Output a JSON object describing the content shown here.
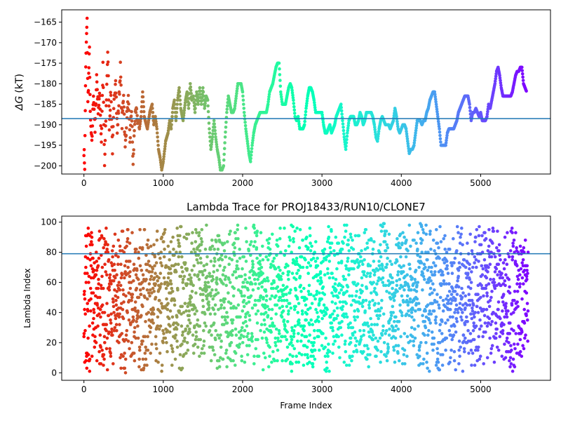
{
  "chart_data": [
    {
      "type": "scatter",
      "title": "",
      "xlabel": "",
      "ylabel": "ΔG (kT)",
      "ylabel_symbol": "ΔG",
      "ylabel_unit": "(kT)",
      "xlim": [
        -280,
        5880
      ],
      "ylim": [
        -202,
        -162
      ],
      "xticks": [
        0,
        1000,
        2000,
        3000,
        4000,
        5000
      ],
      "xticklabels": [
        "0",
        "1000",
        "2000",
        "3000",
        "4000",
        "5000"
      ],
      "yticks": [
        -200,
        -195,
        -190,
        -185,
        -180,
        -175,
        -170,
        -165
      ],
      "yticklabels": [
        "−200",
        "−195",
        "−190",
        "−185",
        "−180",
        "−175",
        "−170",
        "−165"
      ],
      "hline": -188.5,
      "colormap": "rainbow (red at frame 0 → violet at last frame)",
      "n_frames": 5600,
      "trace": [
        [
          0,
          -196
        ],
        [
          10,
          -200
        ],
        [
          20,
          -180
        ],
        [
          30,
          -170
        ],
        [
          40,
          -165
        ],
        [
          50,
          -185
        ],
        [
          60,
          -178
        ],
        [
          70,
          -172
        ],
        [
          80,
          -188
        ],
        [
          100,
          -195
        ],
        [
          120,
          -182
        ],
        [
          140,
          -192
        ],
        [
          160,
          -178
        ],
        [
          180,
          -186
        ],
        [
          200,
          -183
        ],
        [
          220,
          -194
        ],
        [
          240,
          -176
        ],
        [
          260,
          -200
        ],
        [
          280,
          -186
        ],
        [
          300,
          -172
        ],
        [
          320,
          -190
        ],
        [
          340,
          -182
        ],
        [
          360,
          -196
        ],
        [
          380,
          -185
        ],
        [
          400,
          -178
        ],
        [
          420,
          -192
        ],
        [
          440,
          -185
        ],
        [
          460,
          -176
        ],
        [
          480,
          -190
        ],
        [
          500,
          -182
        ],
        [
          520,
          -196
        ],
        [
          540,
          -188
        ],
        [
          560,
          -184
        ],
        [
          580,
          -194
        ],
        [
          600,
          -186
        ],
        [
          620,
          -200
        ],
        [
          640,
          -189
        ],
        [
          660,
          -187
        ],
        [
          700,
          -191
        ],
        [
          720,
          -188
        ],
        [
          740,
          -182
        ],
        [
          760,
          -188
        ],
        [
          800,
          -191
        ],
        [
          830,
          -187
        ],
        [
          860,
          -185
        ],
        [
          880,
          -190
        ],
        [
          900,
          -188
        ],
        [
          920,
          -191
        ],
        [
          940,
          -196
        ],
        [
          960,
          -198
        ],
        [
          980,
          -201
        ],
        [
          1000,
          -199
        ],
        [
          1030,
          -194
        ],
        [
          1060,
          -192
        ],
        [
          1080,
          -189
        ],
        [
          1100,
          -191
        ],
        [
          1120,
          -186
        ],
        [
          1140,
          -184
        ],
        [
          1160,
          -189
        ],
        [
          1180,
          -184
        ],
        [
          1200,
          -181
        ],
        [
          1220,
          -186
        ],
        [
          1250,
          -189
        ],
        [
          1280,
          -184
        ],
        [
          1300,
          -182
        ],
        [
          1320,
          -186
        ],
        [
          1340,
          -180
        ],
        [
          1360,
          -184
        ],
        [
          1380,
          -183
        ],
        [
          1400,
          -187
        ],
        [
          1420,
          -182
        ],
        [
          1440,
          -185
        ],
        [
          1460,
          -181
        ],
        [
          1480,
          -185
        ],
        [
          1500,
          -181
        ],
        [
          1520,
          -186
        ],
        [
          1540,
          -183
        ],
        [
          1560,
          -184
        ],
        [
          1580,
          -191
        ],
        [
          1600,
          -196
        ],
        [
          1620,
          -193
        ],
        [
          1640,
          -189
        ],
        [
          1660,
          -193
        ],
        [
          1680,
          -196
        ],
        [
          1700,
          -198
        ],
        [
          1720,
          -201
        ],
        [
          1740,
          -201
        ],
        [
          1760,
          -200
        ],
        [
          1780,
          -193
        ],
        [
          1800,
          -187
        ],
        [
          1820,
          -183
        ],
        [
          1840,
          -185
        ],
        [
          1860,
          -187
        ],
        [
          1880,
          -187
        ],
        [
          1900,
          -186
        ],
        [
          1920,
          -183
        ],
        [
          1940,
          -180
        ],
        [
          1960,
          -180
        ],
        [
          1980,
          -180
        ],
        [
          2000,
          -182
        ],
        [
          2020,
          -187
        ],
        [
          2040,
          -191
        ],
        [
          2060,
          -194
        ],
        [
          2080,
          -197
        ],
        [
          2100,
          -199
        ],
        [
          2120,
          -195
        ],
        [
          2140,
          -192
        ],
        [
          2160,
          -190
        ],
        [
          2180,
          -189
        ],
        [
          2200,
          -188
        ],
        [
          2220,
          -187
        ],
        [
          2240,
          -187
        ],
        [
          2260,
          -187
        ],
        [
          2280,
          -187
        ],
        [
          2300,
          -187
        ],
        [
          2320,
          -185
        ],
        [
          2340,
          -182
        ],
        [
          2360,
          -181
        ],
        [
          2380,
          -180
        ],
        [
          2400,
          -178
        ],
        [
          2420,
          -176
        ],
        [
          2440,
          -175
        ],
        [
          2460,
          -175
        ],
        [
          2480,
          -182
        ],
        [
          2500,
          -185
        ],
        [
          2520,
          -185
        ],
        [
          2540,
          -185
        ],
        [
          2560,
          -183
        ],
        [
          2580,
          -181
        ],
        [
          2600,
          -180
        ],
        [
          2620,
          -181
        ],
        [
          2640,
          -184
        ],
        [
          2660,
          -188
        ],
        [
          2680,
          -189
        ],
        [
          2700,
          -188
        ],
        [
          2720,
          -191
        ],
        [
          2740,
          -191
        ],
        [
          2760,
          -191
        ],
        [
          2780,
          -190
        ],
        [
          2800,
          -186
        ],
        [
          2820,
          -183
        ],
        [
          2840,
          -181
        ],
        [
          2860,
          -181
        ],
        [
          2880,
          -182
        ],
        [
          2900,
          -184
        ],
        [
          2920,
          -187
        ],
        [
          2940,
          -187
        ],
        [
          2960,
          -187
        ],
        [
          2980,
          -187
        ],
        [
          3000,
          -187
        ],
        [
          3020,
          -190
        ],
        [
          3040,
          -192
        ],
        [
          3060,
          -192
        ],
        [
          3080,
          -191
        ],
        [
          3100,
          -190
        ],
        [
          3120,
          -192
        ],
        [
          3140,
          -191
        ],
        [
          3160,
          -190
        ],
        [
          3180,
          -188
        ],
        [
          3200,
          -187
        ],
        [
          3220,
          -186
        ],
        [
          3240,
          -185
        ],
        [
          3260,
          -189
        ],
        [
          3280,
          -193
        ],
        [
          3300,
          -196
        ],
        [
          3320,
          -192
        ],
        [
          3340,
          -189
        ],
        [
          3360,
          -188
        ],
        [
          3380,
          -188
        ],
        [
          3400,
          -188
        ],
        [
          3420,
          -190
        ],
        [
          3440,
          -190
        ],
        [
          3460,
          -189
        ],
        [
          3480,
          -187
        ],
        [
          3500,
          -188
        ],
        [
          3520,
          -190
        ],
        [
          3540,
          -189
        ],
        [
          3560,
          -187
        ],
        [
          3580,
          -187
        ],
        [
          3600,
          -187
        ],
        [
          3620,
          -187
        ],
        [
          3640,
          -188
        ],
        [
          3660,
          -190
        ],
        [
          3680,
          -193
        ],
        [
          3700,
          -194
        ],
        [
          3720,
          -191
        ],
        [
          3740,
          -189
        ],
        [
          3760,
          -188
        ],
        [
          3780,
          -189
        ],
        [
          3800,
          -190
        ],
        [
          3820,
          -190
        ],
        [
          3840,
          -190
        ],
        [
          3860,
          -191
        ],
        [
          3880,
          -190
        ],
        [
          3900,
          -189
        ],
        [
          3920,
          -186
        ],
        [
          3940,
          -188
        ],
        [
          3960,
          -191
        ],
        [
          3980,
          -192
        ],
        [
          4000,
          -191
        ],
        [
          4020,
          -190
        ],
        [
          4040,
          -190
        ],
        [
          4060,
          -191
        ],
        [
          4080,
          -194
        ],
        [
          4100,
          -197
        ],
        [
          4120,
          -196
        ],
        [
          4140,
          -196
        ],
        [
          4160,
          -195
        ],
        [
          4180,
          -192
        ],
        [
          4200,
          -189
        ],
        [
          4220,
          -189
        ],
        [
          4240,
          -189
        ],
        [
          4260,
          -190
        ],
        [
          4280,
          -189
        ],
        [
          4300,
          -189
        ],
        [
          4320,
          -187
        ],
        [
          4340,
          -186
        ],
        [
          4360,
          -184
        ],
        [
          4380,
          -183
        ],
        [
          4400,
          -182
        ],
        [
          4420,
          -182
        ],
        [
          4440,
          -185
        ],
        [
          4460,
          -188
        ],
        [
          4480,
          -191
        ],
        [
          4500,
          -195
        ],
        [
          4520,
          -195
        ],
        [
          4540,
          -195
        ],
        [
          4560,
          -195
        ],
        [
          4580,
          -192
        ],
        [
          4600,
          -191
        ],
        [
          4620,
          -191
        ],
        [
          4640,
          -191
        ],
        [
          4660,
          -191
        ],
        [
          4680,
          -190
        ],
        [
          4700,
          -189
        ],
        [
          4720,
          -187
        ],
        [
          4740,
          -186
        ],
        [
          4760,
          -185
        ],
        [
          4780,
          -184
        ],
        [
          4800,
          -183
        ],
        [
          4820,
          -183
        ],
        [
          4840,
          -183
        ],
        [
          4860,
          -185
        ],
        [
          4880,
          -189
        ],
        [
          4900,
          -187
        ],
        [
          4920,
          -187
        ],
        [
          4940,
          -186
        ],
        [
          4960,
          -187
        ],
        [
          4980,
          -188
        ],
        [
          5000,
          -187
        ],
        [
          5020,
          -189
        ],
        [
          5040,
          -189
        ],
        [
          5060,
          -189
        ],
        [
          5080,
          -188
        ],
        [
          5100,
          -185
        ],
        [
          5120,
          -186
        ],
        [
          5140,
          -184
        ],
        [
          5160,
          -182
        ],
        [
          5180,
          -180
        ],
        [
          5200,
          -177
        ],
        [
          5220,
          -176
        ],
        [
          5240,
          -178
        ],
        [
          5260,
          -181
        ],
        [
          5280,
          -183
        ],
        [
          5300,
          -183
        ],
        [
          5320,
          -183
        ],
        [
          5340,
          -183
        ],
        [
          5360,
          -183
        ],
        [
          5380,
          -183
        ],
        [
          5400,
          -182
        ],
        [
          5420,
          -180
        ],
        [
          5440,
          -178
        ],
        [
          5460,
          -177
        ],
        [
          5480,
          -177
        ],
        [
          5500,
          -176
        ],
        [
          5520,
          -176
        ],
        [
          5540,
          -180
        ],
        [
          5560,
          -181
        ],
        [
          5580,
          -182
        ]
      ]
    },
    {
      "type": "scatter",
      "title": "Lambda Trace for PROJ18433/RUN10/CLONE7",
      "xlabel": "Frame Index",
      "ylabel": "Lambda Index",
      "xlim": [
        -280,
        5880
      ],
      "ylim": [
        -5,
        104
      ],
      "xticks": [
        0,
        1000,
        2000,
        3000,
        4000,
        5000
      ],
      "xticklabels": [
        "0",
        "1000",
        "2000",
        "3000",
        "4000",
        "5000"
      ],
      "yticks": [
        0,
        20,
        40,
        60,
        80,
        100
      ],
      "yticklabels": [
        "0",
        "20",
        "40",
        "60",
        "80",
        "100"
      ],
      "hline": 79,
      "colormap": "rainbow (red at frame 0 → violet at last frame)",
      "n_frames": 5600,
      "lambda_min": 0,
      "lambda_max": 99
    }
  ]
}
